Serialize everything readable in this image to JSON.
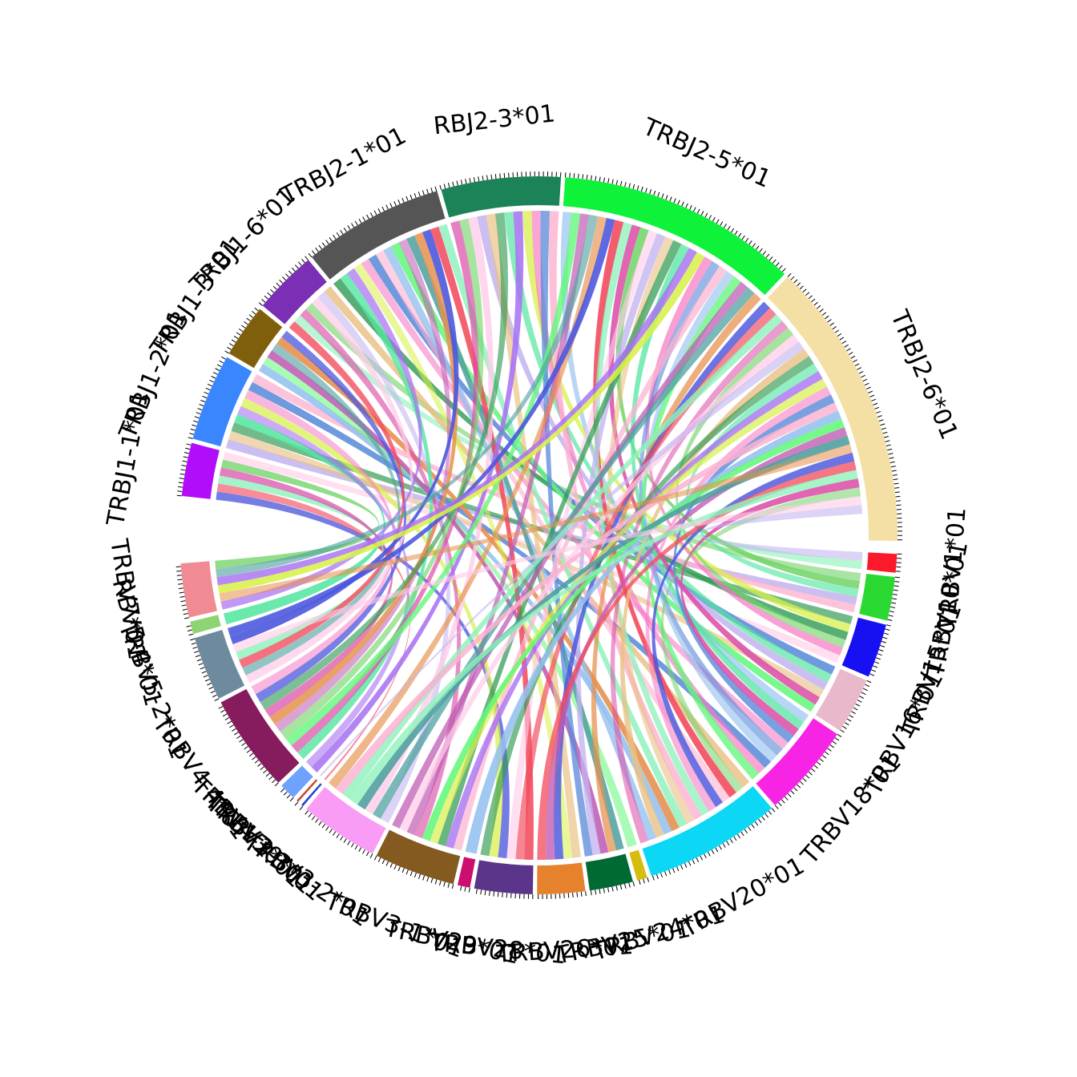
{
  "chart_data": {
    "type": "chord",
    "title": "",
    "segments": [
      {
        "label": "TRBJ1-1*01",
        "color": "#b20dfb",
        "value": 250
      },
      {
        "label": "TRBJ1-2*01",
        "color": "#3a86ff",
        "value": 410
      },
      {
        "label": "TRBJ1-3*01",
        "color": "#7f5f0b",
        "value": 250
      },
      {
        "label": "TRBJ1-6*01",
        "color": "#7a2fb5",
        "value": 300
      },
      {
        "label": "TRBJ2-1*01",
        "color": "#555555",
        "value": 660
      },
      {
        "label": "RBJ2-3*01",
        "color": "#1b8357",
        "value": 560
      },
      {
        "label": "TRBJ2-5*01",
        "color": "#0ef239",
        "value": 1130
      },
      {
        "label": "TRBJ2-6*01",
        "color": "#f4dfa4",
        "value": 1360
      },
      {
        "label": "TRBV1*01",
        "color": "#fb1a2a",
        "value": 90
      },
      {
        "label": "TRBV10*01",
        "color": "#29d831",
        "value": 210
      },
      {
        "label": "TRBV15*01",
        "color": "#1710f2",
        "value": 260
      },
      {
        "label": "TRBV16*01",
        "color": "#eab8cb",
        "value": 270
      },
      {
        "label": "TRBV18*01",
        "color": "#f724e6",
        "value": 450
      },
      {
        "label": "TRBV20*01",
        "color": "#0cd7f4",
        "value": 660
      },
      {
        "label": "TRBV24*01",
        "color": "#d6bc0c",
        "value": 50
      },
      {
        "label": "TRBV25*01",
        "color": "#006a35",
        "value": 210
      },
      {
        "label": "TRBV26*01",
        "color": "#e6822b",
        "value": 230
      },
      {
        "label": "TRBV28*01",
        "color": "#5a3589",
        "value": 280
      },
      {
        "label": "TRBV29*01",
        "color": "#cc0e6e",
        "value": 60
      },
      {
        "label": "TRBV3-1*01",
        "color": "#845a20",
        "value": 390
      },
      {
        "label": "TRBV3-2*01",
        "color": "#f99cf5",
        "value": 380
      },
      {
        "label": "TRBV3-3*01",
        "color": "#1f45cc",
        "value": 10
      },
      {
        "label": "TRBV30*01",
        "color": "#c84a2a",
        "value": 10
      },
      {
        "label": "TRBV4-2*01",
        "color": "#6fa2ff",
        "value": 80
      },
      {
        "label": "TRBV4-4*01",
        "color": "#861b5e",
        "value": 470
      },
      {
        "label": "TRBV5-2*01",
        "color": "#6e8a9e",
        "value": 310
      },
      {
        "label": "RBV5-4*01",
        "color": "#8fd472",
        "value": 60
      },
      {
        "label": "TRBV7*01",
        "color": "#f08a93",
        "value": 260
      }
    ],
    "ribbon_colors": [
      "#4b56dd",
      "#f34b5d",
      "#8ef2bc",
      "#db4ca7",
      "#74d46b",
      "#ffcce8",
      "#c2b4f0",
      "#e9c084",
      "#2f9a52",
      "#52e5a0",
      "#a770f2",
      "#d8f04a",
      "#f67ac3",
      "#5b8bd9",
      "#fcb1d0",
      "#93c0ee",
      "#63f77a",
      "#bf5bb2",
      "#4fa0a0",
      "#e6904d"
    ]
  }
}
